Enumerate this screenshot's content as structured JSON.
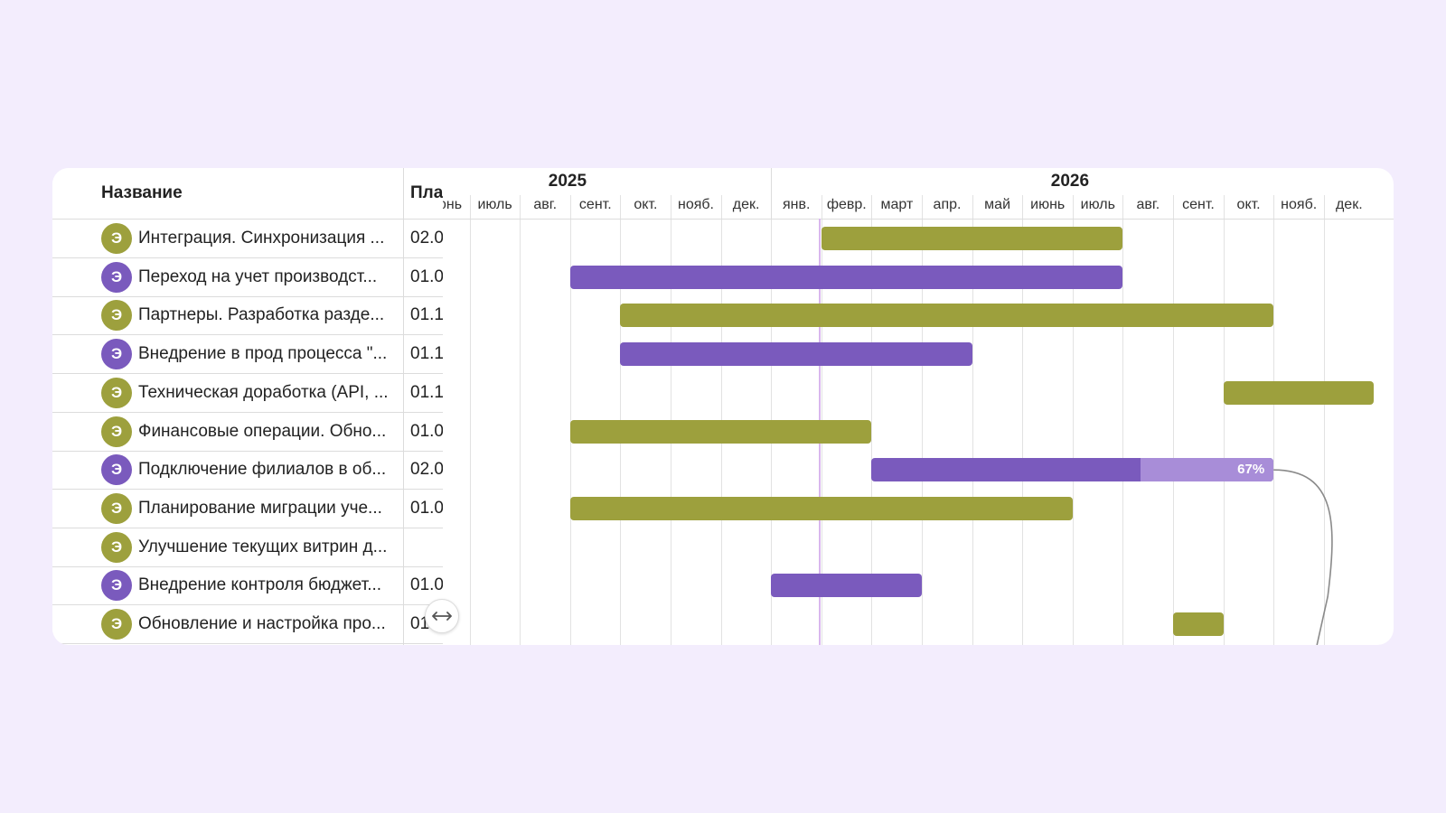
{
  "colors": {
    "olive": "#9da03d",
    "purple": "#7a5abd",
    "purple_light": "#a88dd8",
    "background": "#f3edfd"
  },
  "table": {
    "name_header": "Название",
    "plan_header": "Пла",
    "rows": [
      {
        "type_letter": "Э",
        "color": "olive",
        "name": "Интеграция. Синхронизация ...",
        "plan": "02.0"
      },
      {
        "type_letter": "Э",
        "color": "purple",
        "name": "Переход на учет производст...",
        "plan": "01.0"
      },
      {
        "type_letter": "Э",
        "color": "olive",
        "name": "Партнеры. Разработка разде...",
        "plan": "01.1"
      },
      {
        "type_letter": "Э",
        "color": "purple",
        "name": "Внедрение в прод процесса \"...",
        "plan": "01.1"
      },
      {
        "type_letter": "Э",
        "color": "olive",
        "name": "Техническая доработка (API, ...",
        "plan": "01.1"
      },
      {
        "type_letter": "Э",
        "color": "olive",
        "name": "Финансовые операции. Обно...",
        "plan": "01.0"
      },
      {
        "type_letter": "Э",
        "color": "purple",
        "name": "Подключение филиалов в об...",
        "plan": "02.0"
      },
      {
        "type_letter": "Э",
        "color": "olive",
        "name": "Планирование миграции уче...",
        "plan": "01.0"
      },
      {
        "type_letter": "Э",
        "color": "olive",
        "name": "Улучшение текущих витрин д...",
        "plan": ""
      },
      {
        "type_letter": "Э",
        "color": "purple",
        "name": "Внедрение контроля бюджет...",
        "plan": "01.0"
      },
      {
        "type_letter": "Э",
        "color": "olive",
        "name": "Обновление и настройка про...",
        "plan": "01"
      }
    ]
  },
  "timeline": {
    "years": [
      "2025",
      "2026"
    ],
    "months": [
      "июнь",
      "июль",
      "авг.",
      "сент.",
      "окт.",
      "нояб.",
      "дек.",
      "янв.",
      "февр.",
      "март",
      "апр.",
      "май",
      "июнь",
      "июль",
      "авг.",
      "сент.",
      "окт.",
      "нояб.",
      "дек."
    ],
    "today_month_offset": 7.95,
    "bars": [
      {
        "row": 0,
        "start": 8,
        "end": 14,
        "color": "olive"
      },
      {
        "row": 1,
        "start": 3,
        "end": 14,
        "color": "purple"
      },
      {
        "row": 2,
        "start": 4,
        "end": 17,
        "color": "olive"
      },
      {
        "row": 3,
        "start": 4,
        "end": 11,
        "color": "purple"
      },
      {
        "row": 4,
        "start": 16,
        "end": 19,
        "color": "olive"
      },
      {
        "row": 5,
        "start": 3,
        "end": 9,
        "color": "olive"
      },
      {
        "row": 6,
        "start": 9,
        "end": 17,
        "color": "purple",
        "progress": 0.67,
        "progress_label": "67%"
      },
      {
        "row": 7,
        "start": 3,
        "end": 13,
        "color": "olive"
      },
      {
        "row": 9,
        "start": 7,
        "end": 10,
        "color": "purple"
      },
      {
        "row": 10,
        "start": 15,
        "end": 16,
        "color": "olive"
      }
    ]
  }
}
